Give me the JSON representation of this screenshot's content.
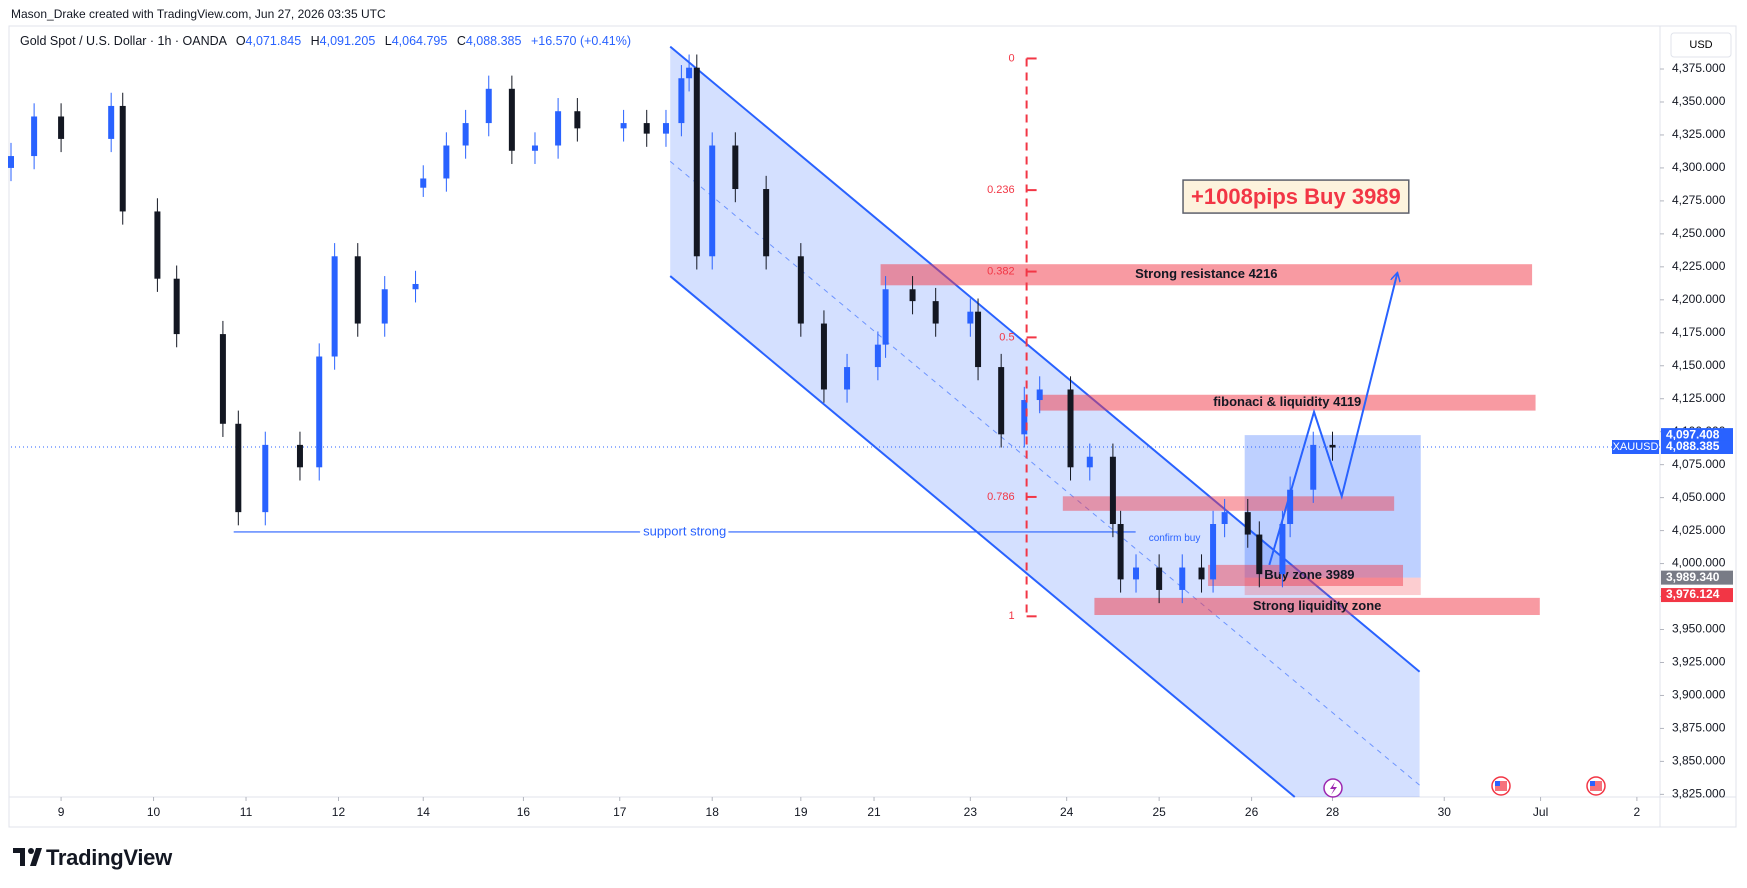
{
  "header": {
    "credit": "Mason_Drake created with TradingView.com, Jun 27, 2026 03:35 UTC",
    "instrument": "Gold Spot / U.S. Dollar · 1h · OANDA",
    "ohlc": [
      {
        "key": "O",
        "value": "4,071.845"
      },
      {
        "key": "H",
        "value": "4,091.205"
      },
      {
        "key": "L",
        "value": "4,064.795"
      },
      {
        "key": "C",
        "value": "4,088.385"
      }
    ],
    "change": "+16.570 (+0.41%)",
    "currency": "USD",
    "brand": "TradingView"
  },
  "chart_data": {
    "type": "candlestick",
    "up_color": "#2962ff",
    "down_color": "#131722",
    "xlim": [
      0,
      428
    ],
    "ylim": [
      3823,
      4397
    ],
    "yticks": [
      {
        "value": 3825,
        "label": "3,825.000"
      },
      {
        "value": 3850,
        "label": "3,850.000"
      },
      {
        "value": 3875,
        "label": "3,875.000"
      },
      {
        "value": 3900,
        "label": "3,900.000"
      },
      {
        "value": 3925,
        "label": "3,925.000"
      },
      {
        "value": 3950,
        "label": "3,950.000"
      },
      {
        "value": 3975,
        "label": "3,975.000"
      },
      {
        "value": 4000,
        "label": "4,000.000"
      },
      {
        "value": 4025,
        "label": "4,025.000"
      },
      {
        "value": 4050,
        "label": "4,050.000"
      },
      {
        "value": 4075,
        "label": "4,075.000"
      },
      {
        "value": 4100,
        "label": "4,100.000"
      },
      {
        "value": 4125,
        "label": "4,125.000"
      },
      {
        "value": 4150,
        "label": "4,150.000"
      },
      {
        "value": 4175,
        "label": "4,175.000"
      },
      {
        "value": 4200,
        "label": "4,200.000"
      },
      {
        "value": 4225,
        "label": "4,225.000"
      },
      {
        "value": 4250,
        "label": "4,250.000"
      },
      {
        "value": 4275,
        "label": "4,275.000"
      },
      {
        "value": 4300,
        "label": "4,300.000"
      },
      {
        "value": 4325,
        "label": "4,325.000"
      },
      {
        "value": 4350,
        "label": "4,350.000"
      },
      {
        "value": 4375,
        "label": "4,375.000"
      }
    ],
    "xticks": [
      {
        "value": 13,
        "label": "9"
      },
      {
        "value": 37,
        "label": "10"
      },
      {
        "value": 61,
        "label": "11"
      },
      {
        "value": 85,
        "label": "12"
      },
      {
        "value": 107,
        "label": "14"
      },
      {
        "value": 133,
        "label": "16"
      },
      {
        "value": 158,
        "label": "17"
      },
      {
        "value": 182,
        "label": "18"
      },
      {
        "value": 205,
        "label": "19"
      },
      {
        "value": 224,
        "label": "21"
      },
      {
        "value": 249,
        "label": "23"
      },
      {
        "value": 274,
        "label": "24"
      },
      {
        "value": 298,
        "label": "25"
      },
      {
        "value": 322,
        "label": "26"
      },
      {
        "value": 343,
        "label": "28"
      },
      {
        "value": 372,
        "label": "30"
      },
      {
        "value": 397,
        "label": "Jul"
      },
      {
        "value": 422,
        "label": "2"
      }
    ],
    "x": [
      0,
      6,
      13,
      26,
      29,
      38,
      43,
      55,
      59,
      66,
      75,
      80,
      84,
      90,
      97,
      105,
      107,
      113,
      118,
      124,
      130,
      136,
      142,
      147,
      159,
      165,
      170,
      174,
      176,
      178,
      182,
      188,
      196,
      205,
      211,
      217,
      225,
      227,
      234,
      240,
      249,
      251,
      257,
      263,
      267,
      275,
      280,
      286,
      288,
      292,
      298,
      304,
      309,
      312,
      315,
      321,
      324,
      330,
      332,
      338,
      343
    ],
    "ohlc": [
      [
        4300,
        4319,
        4290,
        4309
      ],
      [
        4309,
        4349,
        4299,
        4339
      ],
      [
        4339,
        4349,
        4312,
        4322
      ],
      [
        4322,
        4357,
        4312,
        4347
      ],
      [
        4347,
        4357,
        4257,
        4267
      ],
      [
        4267,
        4277,
        4206,
        4216
      ],
      [
        4216,
        4226,
        4164,
        4174
      ],
      [
        4174,
        4184,
        4096,
        4106
      ],
      [
        4106,
        4116,
        4029,
        4039
      ],
      [
        4039,
        4100,
        4029,
        4090
      ],
      [
        4090,
        4100,
        4063,
        4073
      ],
      [
        4073,
        4167,
        4063,
        4157
      ],
      [
        4157,
        4243,
        4147,
        4233
      ],
      [
        4233,
        4243,
        4172,
        4182
      ],
      [
        4182,
        4218,
        4172,
        4208
      ],
      [
        4208,
        4222,
        4198,
        4212
      ],
      [
        4285,
        4302,
        4278,
        4292
      ],
      [
        4292,
        4327,
        4282,
        4317
      ],
      [
        4317,
        4344,
        4307,
        4334
      ],
      [
        4334,
        4370,
        4324,
        4360
      ],
      [
        4360,
        4370,
        4303,
        4313
      ],
      [
        4313,
        4327,
        4303,
        4317
      ],
      [
        4317,
        4353,
        4307,
        4343
      ],
      [
        4343,
        4353,
        4320,
        4330
      ],
      [
        4330,
        4344,
        4320,
        4334
      ],
      [
        4334,
        4344,
        4316,
        4326
      ],
      [
        4326,
        4344,
        4316,
        4334
      ],
      [
        4334,
        4378,
        4324,
        4368
      ],
      [
        4368,
        4386,
        4358,
        4376
      ],
      [
        4376,
        4386,
        4223,
        4233
      ],
      [
        4233,
        4327,
        4223,
        4317
      ],
      [
        4317,
        4327,
        4274,
        4284
      ],
      [
        4284,
        4294,
        4223,
        4233
      ],
      [
        4233,
        4243,
        4172,
        4182
      ],
      [
        4182,
        4192,
        4122,
        4132
      ],
      [
        4132,
        4159,
        4122,
        4149
      ],
      [
        4149,
        4176,
        4139,
        4166
      ],
      [
        4166,
        4218,
        4156,
        4208
      ],
      [
        4208,
        4218,
        4189,
        4199
      ],
      [
        4199,
        4209,
        4172,
        4182
      ],
      [
        4182,
        4201,
        4172,
        4191
      ],
      [
        4191,
        4201,
        4139,
        4149
      ],
      [
        4149,
        4159,
        4088,
        4098
      ],
      [
        4098,
        4134,
        4088,
        4124
      ],
      [
        4124,
        4142,
        4114,
        4132
      ],
      [
        4132,
        4142,
        4063,
        4073
      ],
      [
        4073,
        4091,
        4063,
        4081
      ],
      [
        4081,
        4091,
        4020,
        4030
      ],
      [
        4030,
        4040,
        3978,
        3988
      ],
      [
        3988,
        4007,
        3978,
        3997
      ],
      [
        3997,
        4007,
        3970,
        3980
      ],
      [
        3980,
        4007,
        3970,
        3997
      ],
      [
        3997,
        4007,
        3978,
        3988
      ],
      [
        3988,
        4040,
        3978,
        4030
      ],
      [
        4030,
        4049,
        4020,
        4039
      ],
      [
        4039,
        4049,
        4012,
        4022
      ],
      [
        4022,
        4032,
        3982,
        3992
      ],
      [
        3992,
        4040,
        3982,
        4030
      ],
      [
        4030,
        4066,
        4020,
        4056
      ],
      [
        4056,
        4100,
        4046,
        4090
      ],
      [
        4090,
        4100,
        4078,
        4088
      ]
    ],
    "channel": {
      "upper": [
        [
          171.1,
          4392
        ],
        [
          365.6,
          3918
        ]
      ],
      "lower": [
        [
          171.1,
          4218
        ],
        [
          333.2,
          3823
        ]
      ],
      "middle": [
        [
          171.1,
          4305
        ],
        [
          365.6,
          3832
        ]
      ]
    },
    "fib": {
      "x": 263.6,
      "price_0": 4383,
      "price_1": 3960,
      "levels": [
        0,
        0.236,
        0.382,
        0.5,
        0.786,
        1
      ]
    },
    "zones": [
      {
        "label": "Strong resistance 4216",
        "x0": 225.7,
        "x1": 394.8,
        "top": 4227,
        "bottom": 4211
      },
      {
        "label": "fibonaci & liquidity 4119",
        "x0": 266.8,
        "x1": 395.7,
        "top": 4128,
        "bottom": 4116
      },
      {
        "label": "Strong liquidity zone",
        "x0": 281.2,
        "x1": 396.8,
        "top": 3974,
        "bottom": 3961
      }
    ],
    "plain_zones": [
      {
        "x0": 273,
        "x1": 359,
        "top": 4051,
        "bottom": 4040
      },
      {
        "x0": 310.7,
        "x1": 361.3,
        "top": 3999,
        "bottom": 3983
      }
    ],
    "buy_zone_label": {
      "text": "Buy zone 3989",
      "x": 337,
      "price": 3991
    },
    "position": {
      "x0": 320.2,
      "x1": 365.9,
      "target": 4097.408,
      "entry": 3989.34,
      "stop": 3976.124
    },
    "support": {
      "label": "support strong",
      "x0": 57.8,
      "x1": 291.9,
      "price": 4024
    },
    "confirm": {
      "text": "confirm buy",
      "x": 302,
      "price": 4019
    },
    "projection": {
      "x": [
        326.6,
        338.2,
        345.4,
        359.8
      ],
      "prices": [
        3999,
        4115,
        4051,
        4220
      ]
    },
    "callout": {
      "text": "+1008pips Buy 3989",
      "x": 333.5,
      "price": 4277
    },
    "symbol": "XAUUSD",
    "last_price": {
      "value": 4088.385,
      "label": "4,088.385"
    },
    "price_labels": [
      {
        "value": 4097.408,
        "label": "4,097.408",
        "color": "#2962ff"
      },
      {
        "value": 3989.34,
        "label": "3,989.340",
        "color": "#787b86"
      },
      {
        "value": 3976.124,
        "label": "3,976.124",
        "color": "#f23645"
      }
    ]
  }
}
